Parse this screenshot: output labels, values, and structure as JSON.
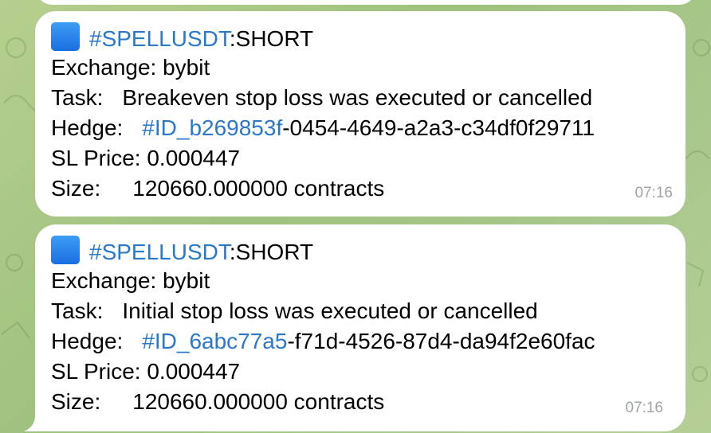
{
  "messages": [
    {
      "tag": "#SPELLUSDT",
      "direction": ":SHORT",
      "exchange_label": "Exchange:",
      "exchange_value": "bybit",
      "task_label": "Task:",
      "task_value": "Breakeven stop loss was executed or cancelled",
      "hedge_label": "Hedge:",
      "hedge_link": "#ID_b269853f",
      "hedge_rest": "-0454-4649-a2a3-c34df0f29711",
      "sl_label": "SL Price:",
      "sl_value": "0.000447",
      "size_label": "Size:",
      "size_value": "120660.000000 contracts",
      "time": "07:16"
    },
    {
      "tag": "#SPELLUSDT",
      "direction": ":SHORT",
      "exchange_label": "Exchange:",
      "exchange_value": "bybit",
      "task_label": "Task:",
      "task_value": "Initial stop loss was executed or cancelled",
      "hedge_label": "Hedge:",
      "hedge_link": "#ID_6abc77a5",
      "hedge_rest": "-f71d-4526-87d4-da94f2e60fac",
      "sl_label": "SL Price:",
      "sl_value": "0.000447",
      "size_label": "Size:",
      "size_value": "120660.000000 contracts",
      "time": "07:16"
    }
  ],
  "colors": {
    "link": "#2a78c9",
    "bubble": "#ffffff",
    "time": "#a0a4a8",
    "square_icon": "#1a6fe0"
  },
  "icons": {
    "square": "blue-square-icon"
  }
}
